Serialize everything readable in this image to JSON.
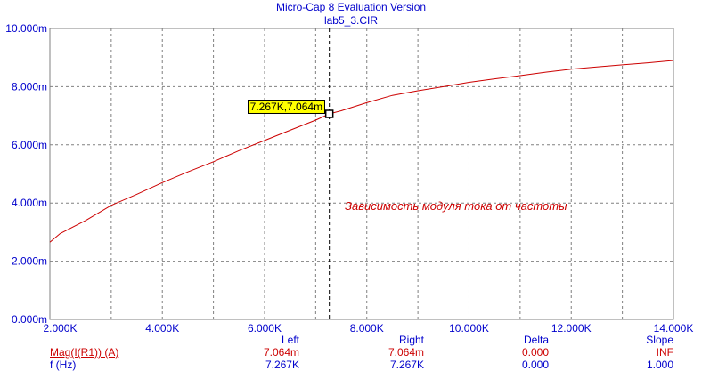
{
  "header": {
    "app_title": "Micro-Cap 8 Evaluation Version",
    "file_name": "lab5_3.CIR"
  },
  "chart_data": {
    "type": "line",
    "title": "",
    "xlabel": "",
    "ylabel": "",
    "xlim": [
      1800,
      14000
    ],
    "ylim": [
      0,
      10
    ],
    "x_ticks": [
      "2.000K",
      "4.000K",
      "6.000K",
      "8.000K",
      "10.000K",
      "12.000K",
      "14.000K"
    ],
    "y_ticks": [
      "0.000m",
      "2.000m",
      "4.000m",
      "6.000m",
      "8.000m",
      "10.000m"
    ],
    "grid": true,
    "series": [
      {
        "name": "Mag(I(R1)) (A)",
        "color": "#cc0000",
        "x": [
          1800,
          2000,
          2500,
          3000,
          3500,
          4000,
          4500,
          5000,
          5500,
          6000,
          6500,
          7000,
          7267,
          7500,
          8000,
          8500,
          9000,
          9500,
          10000,
          10500,
          11000,
          11500,
          12000,
          12500,
          13000,
          13500,
          14000
        ],
        "y": [
          2.65,
          2.95,
          3.4,
          3.92,
          4.3,
          4.7,
          5.07,
          5.42,
          5.8,
          6.15,
          6.5,
          6.85,
          7.064,
          7.17,
          7.45,
          7.7,
          7.86,
          8.0,
          8.15,
          8.27,
          8.38,
          8.5,
          8.6,
          8.68,
          8.75,
          8.82,
          8.9
        ]
      }
    ],
    "cursor": {
      "x": 7267,
      "y": 7.064,
      "label": "7.267K,7.064m"
    },
    "annotation": "Зависимость модуля тока от частоты"
  },
  "table": {
    "headers": {
      "left": "Left",
      "right": "Right",
      "delta": "Delta",
      "slope": "Slope"
    },
    "rows": [
      {
        "name": "Mag(I(R1)) (A)",
        "left": "7.064m",
        "right": "7.064m",
        "delta": "0.000",
        "slope": "INF"
      },
      {
        "name": "f (Hz)",
        "left": "7.267K",
        "right": "7.267K",
        "delta": "0.000",
        "slope": "1.000"
      }
    ]
  }
}
